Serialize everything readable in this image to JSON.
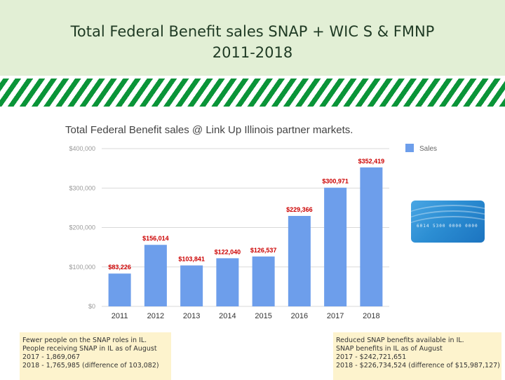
{
  "slide": {
    "title_line1": "Total Federal Benefit sales SNAP + WIC S & FMNP",
    "title_line2": "2011-2018"
  },
  "chart_data": {
    "type": "bar",
    "title": "Total Federal Benefit sales @ Link Up Illinois partner markets.",
    "categories": [
      "2011",
      "2012",
      "2013",
      "2014",
      "2015",
      "2016",
      "2017",
      "2018"
    ],
    "series": [
      {
        "name": "Sales",
        "values": [
          83226,
          156014,
          103841,
          122040,
          126537,
          229366,
          300971,
          352419
        ]
      }
    ],
    "data_labels": [
      "$83,226",
      "$156,014",
      "$103,841",
      "$122,040",
      "$126,537",
      "$229,366",
      "$300,971",
      "$352,419"
    ],
    "y_ticks": [
      {
        "value": 0,
        "label": "$0"
      },
      {
        "value": 100000,
        "label": "$100,000"
      },
      {
        "value": 200000,
        "label": "$200,000"
      },
      {
        "value": 300000,
        "label": "$300,000"
      },
      {
        "value": 400000,
        "label": "$400,000"
      }
    ],
    "ylim": [
      0,
      400000
    ],
    "grid": true,
    "legend_position": "top-right",
    "colors": {
      "bar": "#6d9eeb",
      "label": "#cc0000",
      "grid": "#d9d9d9",
      "tick": "#999999"
    }
  },
  "card": {
    "number": "6014 5300 0000 0000"
  },
  "notes": {
    "left": [
      "Fewer people on the SNAP roles in IL.",
      "People receiving SNAP in IL as of August",
      "2017 - 1,869,067",
      "2018 - 1,765,985 (difference of 103,082)"
    ],
    "right": [
      "Reduced SNAP benefits available in IL.",
      "SNAP benefits in IL as of August",
      "2017 - $242,721,651",
      "2018 - $226,734,524 (difference of $15,987,127)"
    ]
  }
}
